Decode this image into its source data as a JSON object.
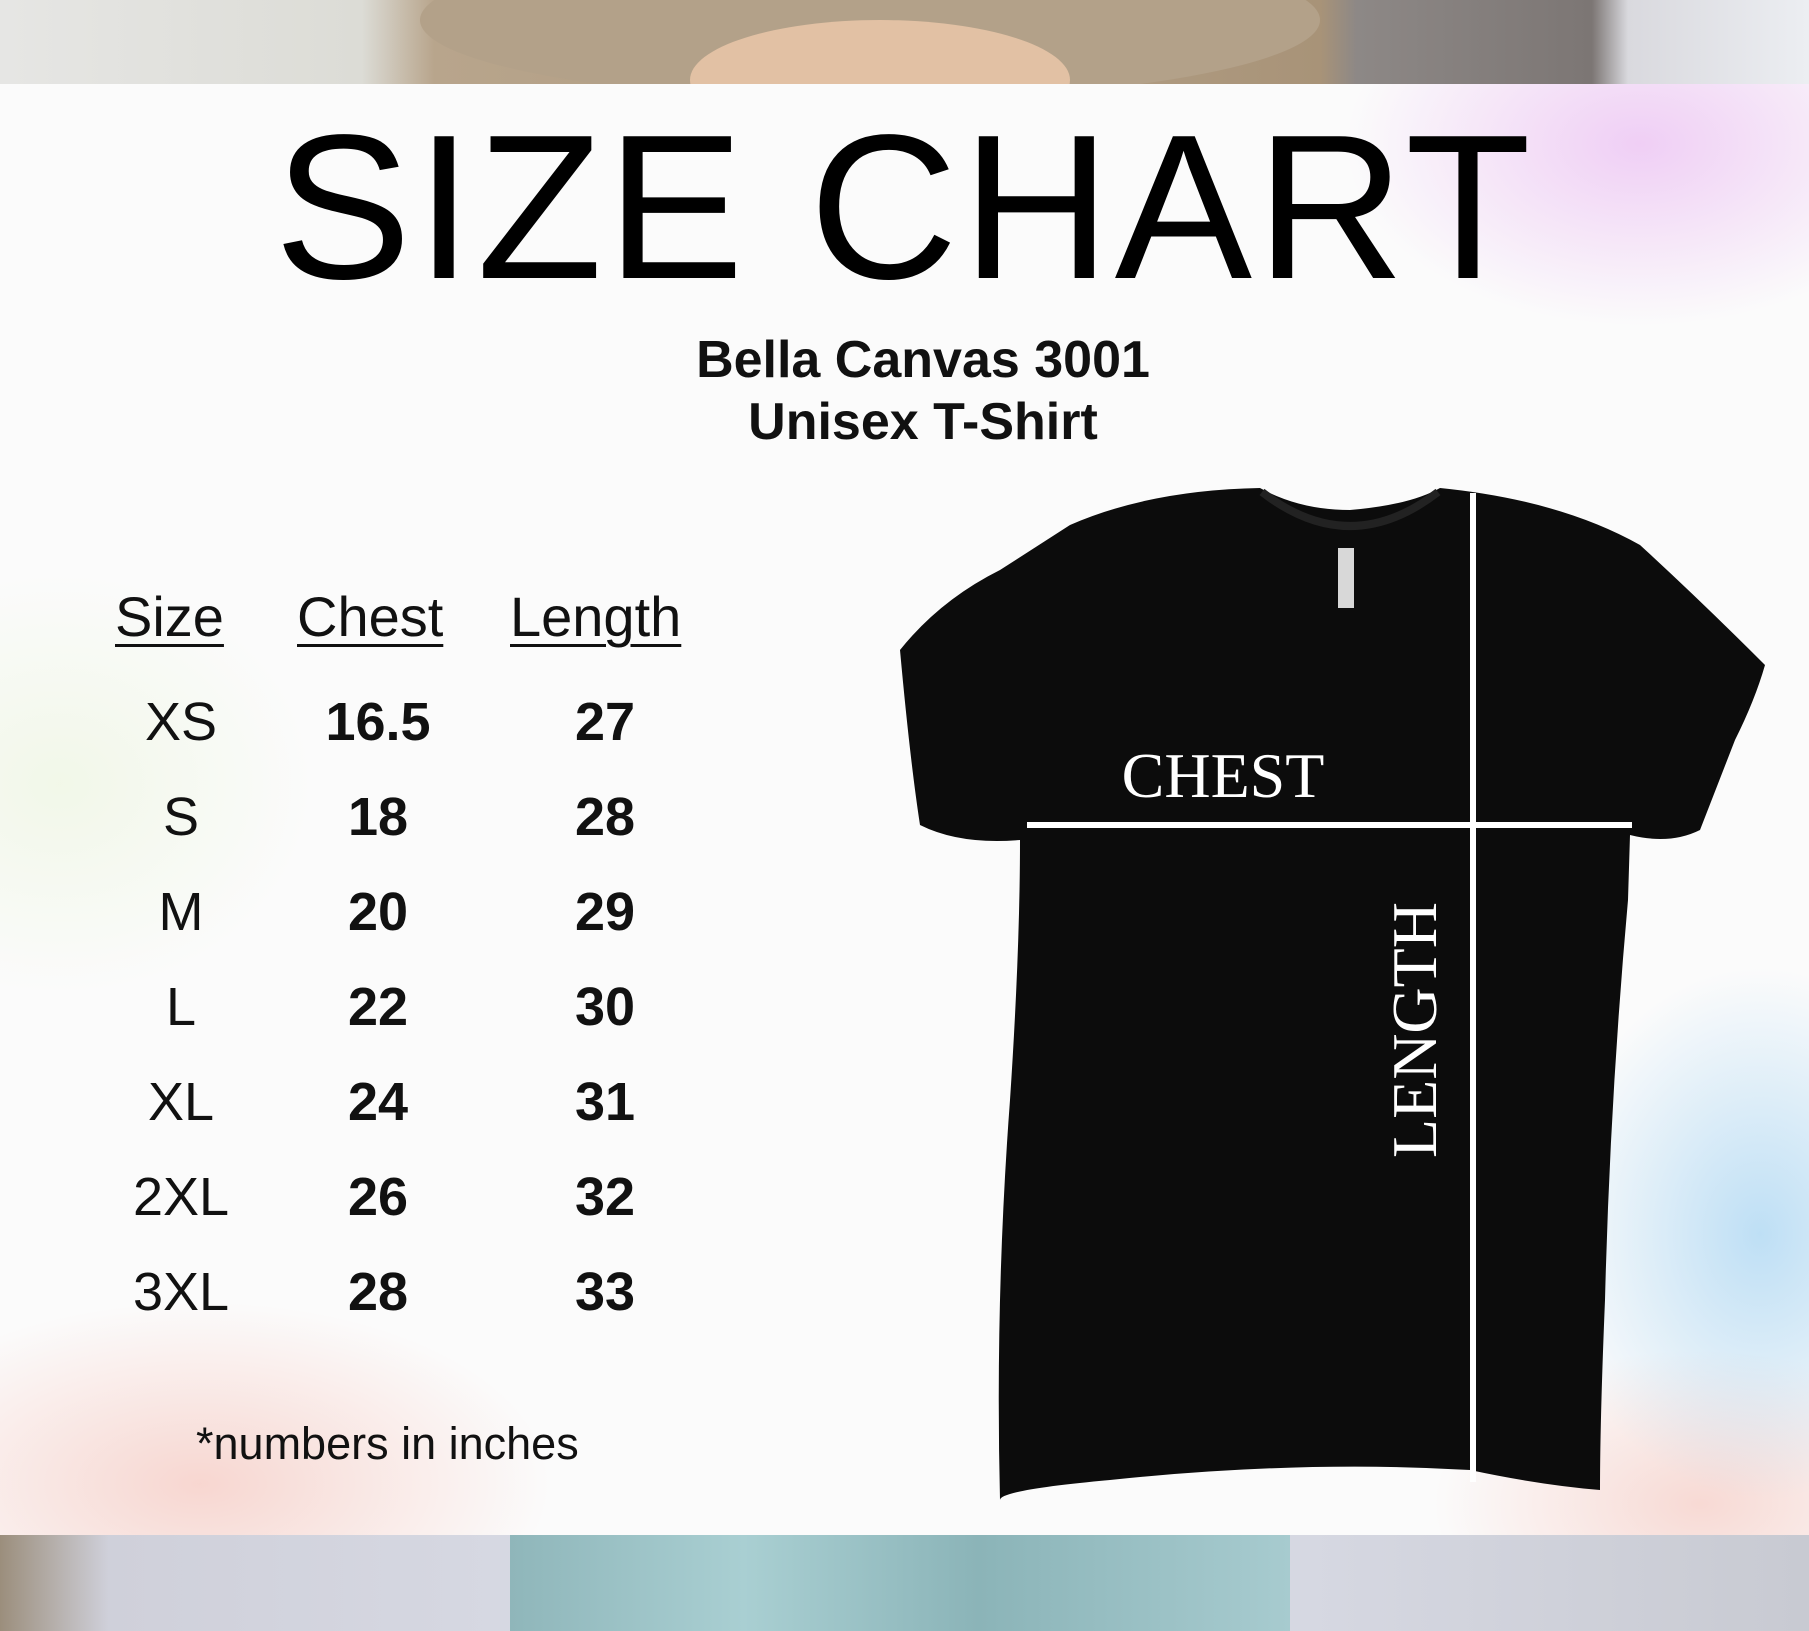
{
  "title": "SIZE CHART",
  "subtitle_line1": "Bella Canvas 3001",
  "subtitle_line2": "Unisex T-Shirt",
  "table": {
    "headers": [
      "Size",
      "Chest",
      "Length"
    ],
    "rows": [
      [
        "XS",
        "16.5",
        "27"
      ],
      [
        "S",
        "18",
        "28"
      ],
      [
        "M",
        "20",
        "29"
      ],
      [
        "L",
        "22",
        "30"
      ],
      [
        "XL",
        "24",
        "31"
      ],
      [
        "2XL",
        "26",
        "32"
      ],
      [
        "3XL",
        "28",
        "33"
      ]
    ]
  },
  "footnote": "*numbers in inches",
  "diagram": {
    "chest_label": "CHEST",
    "length_label": "LENGTH",
    "shirt_color": "#0c0c0c",
    "line_color": "#ffffff"
  }
}
